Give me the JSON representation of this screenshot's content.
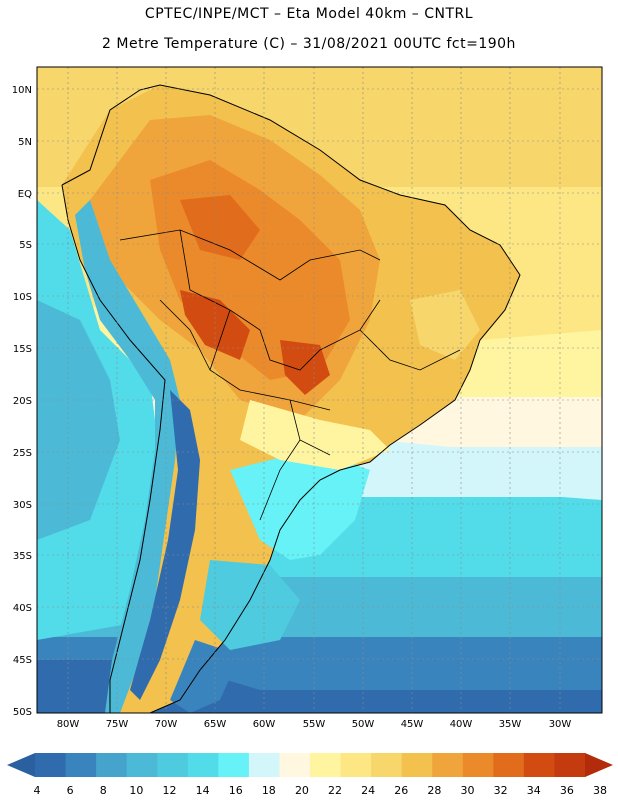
{
  "header": {
    "line1": "CPTEC/INPE/MCT –  Eta Model 40km – CNTRL",
    "line2": "2 Metre Temperature (C) – 31/08/2021 00UTC fct=190h"
  },
  "axes": {
    "lat_labels": [
      "10N",
      "5N",
      "EQ",
      "5S",
      "10S",
      "15S",
      "20S",
      "25S",
      "30S",
      "35S",
      "40S",
      "45S",
      "50S"
    ],
    "lon_labels": [
      "80W",
      "75W",
      "70W",
      "65W",
      "60W",
      "55W",
      "50W",
      "45W",
      "40W",
      "35W",
      "30W"
    ]
  },
  "legend": {
    "ticks": [
      "4",
      "6",
      "8",
      "10",
      "12",
      "14",
      "16",
      "18",
      "20",
      "22",
      "24",
      "26",
      "28",
      "30",
      "32",
      "34",
      "36",
      "38"
    ],
    "colors": [
      "#2f6bad",
      "#3a84bd",
      "#45a3cc",
      "#4cbad6",
      "#4fcbdf",
      "#52dcea",
      "#66f2f6",
      "#d3f6fb",
      "#fff7df",
      "#fff5a1",
      "#fde784",
      "#f7d66c",
      "#f2c14e",
      "#f0a53c",
      "#eb8a2a",
      "#e06c1c",
      "#d24c12",
      "#c33b0e"
    ],
    "low_arrow_color": "#2a5fa0",
    "high_arrow_color": "#b22c0b"
  }
}
